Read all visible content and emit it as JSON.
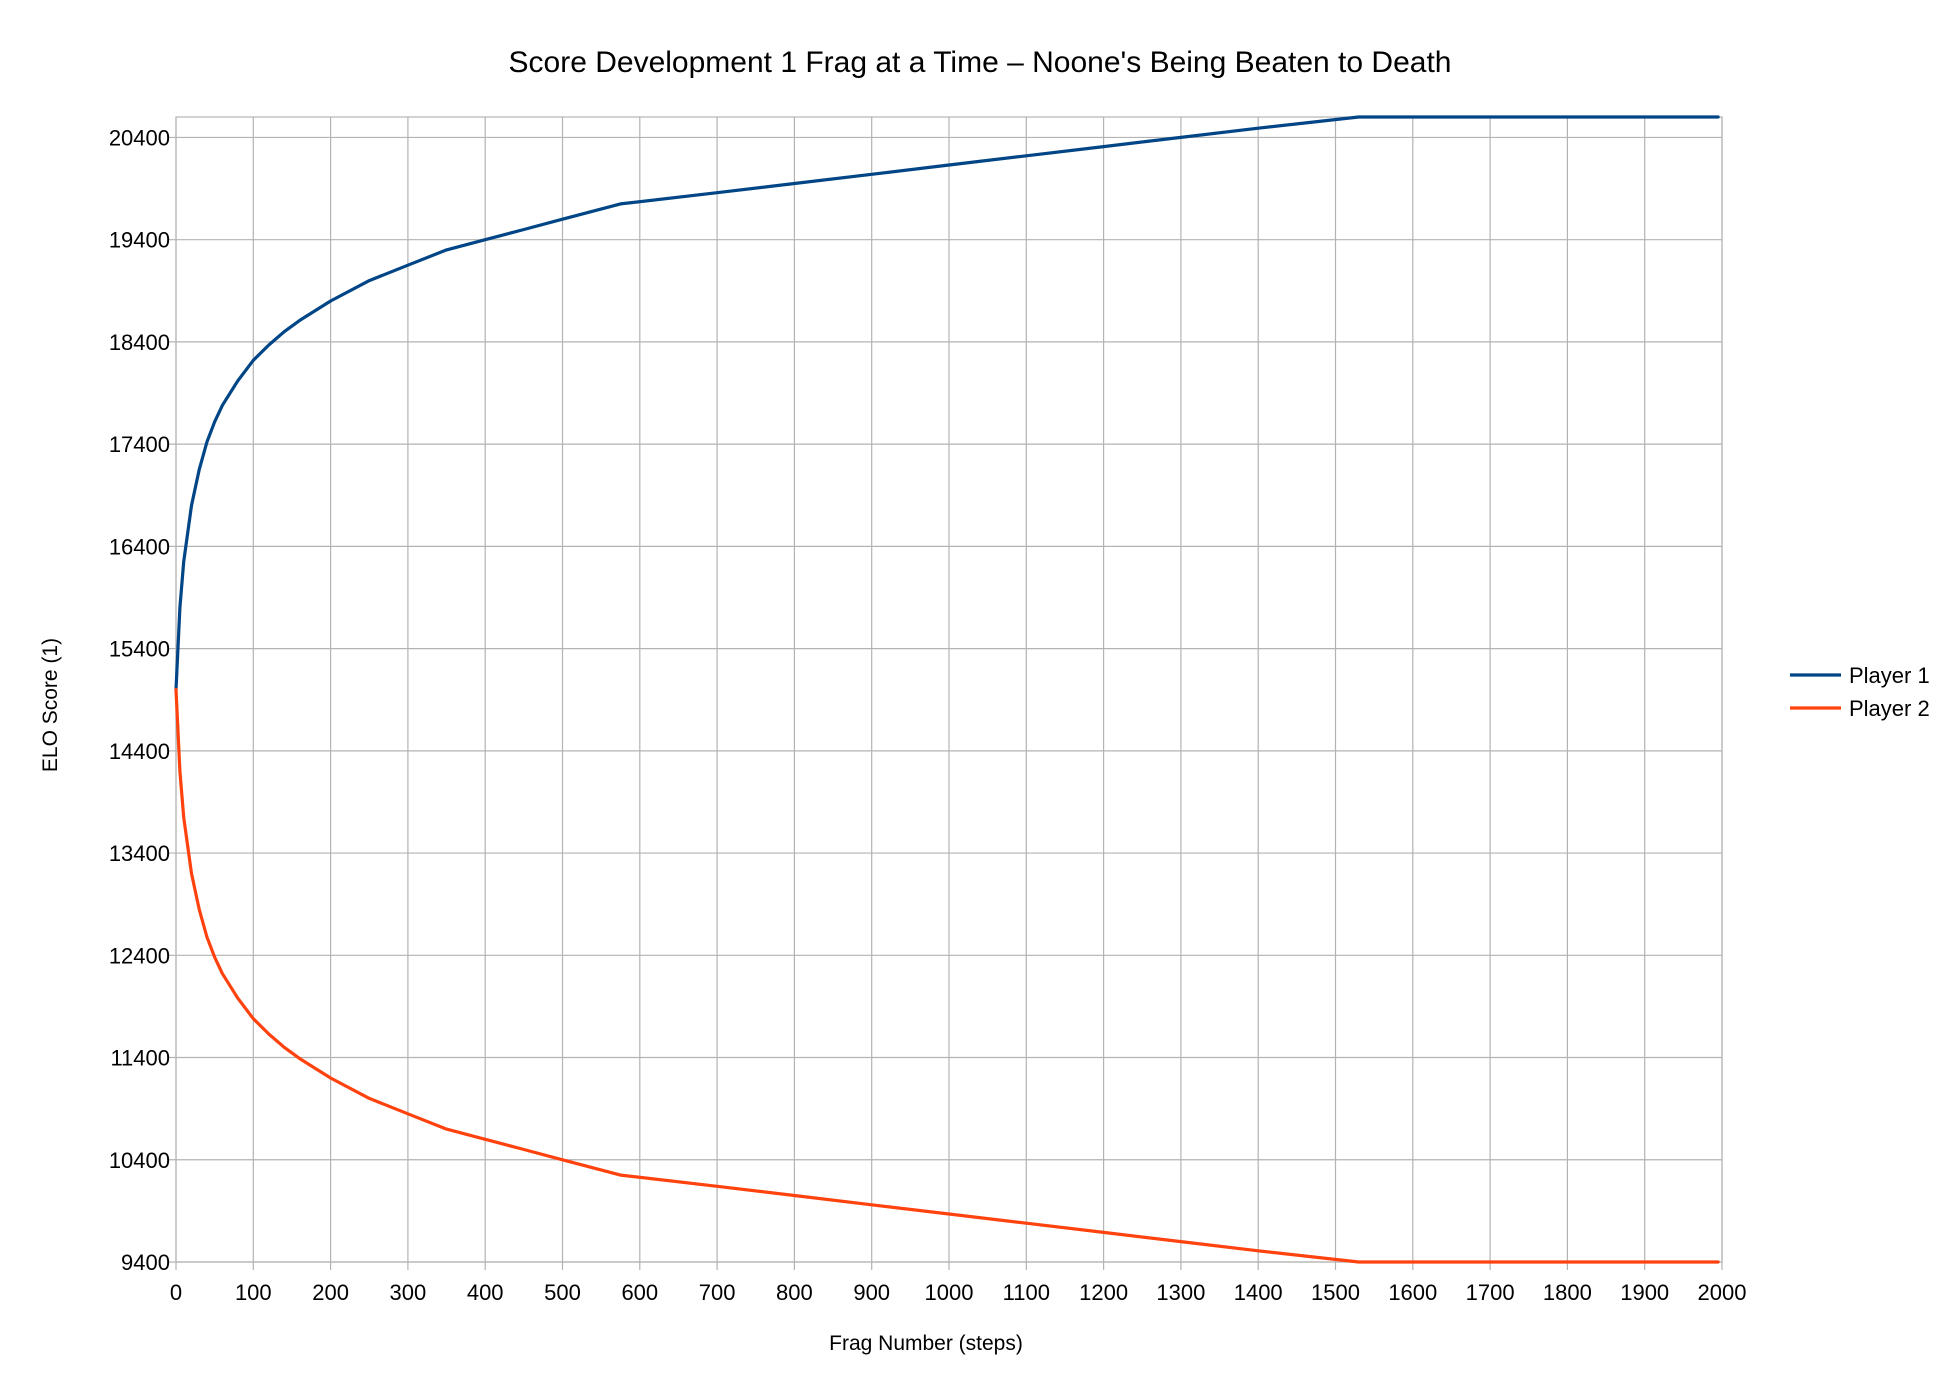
{
  "chart_data": {
    "type": "line",
    "title": "Score Development 1 Frag at a Time – Noone's Being Beaten to Death",
    "xlabel": "Frag Number (steps)",
    "ylabel": "ELO Score (1)",
    "xlim": [
      0,
      2000
    ],
    "ylim": [
      9400,
      20600
    ],
    "x_ticks": [
      0,
      100,
      200,
      300,
      400,
      500,
      600,
      700,
      800,
      900,
      1000,
      1100,
      1200,
      1300,
      1400,
      1500,
      1600,
      1700,
      1800,
      1900,
      2000
    ],
    "y_ticks": [
      9400,
      10400,
      11400,
      12400,
      13400,
      14400,
      15400,
      16400,
      17400,
      18400,
      19400,
      20400
    ],
    "grid": true,
    "legend_position": "right",
    "series": [
      {
        "name": "Player 1",
        "color": "#004586",
        "points": [
          [
            0,
            15000
          ],
          [
            5,
            15800
          ],
          [
            10,
            16250
          ],
          [
            20,
            16800
          ],
          [
            30,
            17150
          ],
          [
            40,
            17420
          ],
          [
            50,
            17620
          ],
          [
            60,
            17780
          ],
          [
            80,
            18020
          ],
          [
            100,
            18220
          ],
          [
            120,
            18370
          ],
          [
            140,
            18500
          ],
          [
            160,
            18610
          ],
          [
            200,
            18800
          ],
          [
            250,
            19000
          ],
          [
            300,
            19150
          ],
          [
            350,
            19300
          ],
          [
            400,
            19400
          ],
          [
            450,
            19500
          ],
          [
            500,
            19600
          ],
          [
            575,
            19750
          ],
          [
            700,
            19860
          ],
          [
            800,
            19950
          ],
          [
            900,
            20040
          ],
          [
            1000,
            20130
          ],
          [
            1100,
            20220
          ],
          [
            1200,
            20310
          ],
          [
            1300,
            20400
          ],
          [
            1400,
            20490
          ],
          [
            1530,
            20600
          ],
          [
            1600,
            20600
          ],
          [
            1700,
            20600
          ],
          [
            1800,
            20600
          ],
          [
            1900,
            20600
          ],
          [
            1995,
            20600
          ]
        ]
      },
      {
        "name": "Player 2",
        "color": "#ff420e",
        "points": [
          [
            0,
            15000
          ],
          [
            5,
            14200
          ],
          [
            10,
            13750
          ],
          [
            20,
            13200
          ],
          [
            30,
            12850
          ],
          [
            40,
            12580
          ],
          [
            50,
            12380
          ],
          [
            60,
            12220
          ],
          [
            80,
            11980
          ],
          [
            100,
            11780
          ],
          [
            120,
            11630
          ],
          [
            140,
            11500
          ],
          [
            160,
            11390
          ],
          [
            200,
            11200
          ],
          [
            250,
            11000
          ],
          [
            300,
            10850
          ],
          [
            350,
            10700
          ],
          [
            400,
            10600
          ],
          [
            450,
            10500
          ],
          [
            500,
            10400
          ],
          [
            575,
            10250
          ],
          [
            700,
            10140
          ],
          [
            800,
            10050
          ],
          [
            900,
            9960
          ],
          [
            1000,
            9870
          ],
          [
            1100,
            9780
          ],
          [
            1200,
            9690
          ],
          [
            1300,
            9600
          ],
          [
            1400,
            9510
          ],
          [
            1530,
            9400
          ],
          [
            1600,
            9400
          ],
          [
            1700,
            9400
          ],
          [
            1800,
            9400
          ],
          [
            1900,
            9400
          ],
          [
            1995,
            9400
          ]
        ]
      }
    ]
  }
}
